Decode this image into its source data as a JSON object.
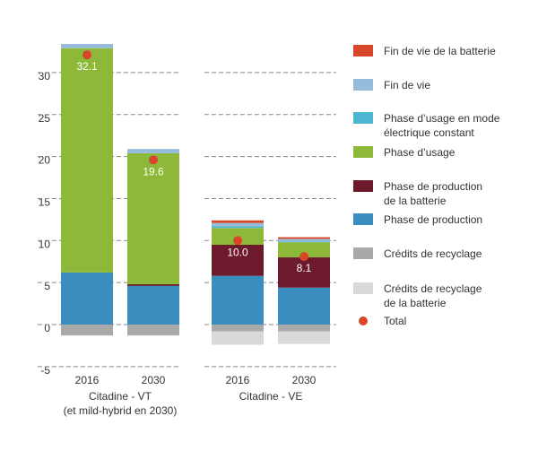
{
  "chart_data": {
    "type": "stacked-bar",
    "groups": [
      {
        "label": "Citadine - VT\n(et mild-hybrid en 2030)",
        "categories": [
          "2016",
          "2030"
        ]
      },
      {
        "label": "Citadine - VE",
        "categories": [
          "2016",
          "2030"
        ]
      }
    ],
    "series": [
      {
        "name": "Fin de vie de la batterie",
        "color": "#d9472b",
        "values": [
          0,
          0,
          0.3,
          0.2
        ]
      },
      {
        "name": "Fin de vie",
        "color": "#96bcdc",
        "values": [
          0.5,
          0.5,
          0.4,
          0.3
        ]
      },
      {
        "name": "Phase d’usage en mode\nélectrique constant",
        "color": "#4db6d0",
        "values": [
          0,
          0,
          0.2,
          0.1
        ]
      },
      {
        "name": "Phase d’usage",
        "color": "#8db83a",
        "values": [
          26.7,
          15.6,
          2.0,
          1.8
        ]
      },
      {
        "name": "Phase de production\nde la batterie",
        "color": "#6d1a2c",
        "values": [
          0,
          0.2,
          3.7,
          3.6
        ]
      },
      {
        "name": "Phase de production",
        "color": "#3a8dbf",
        "values": [
          6.2,
          4.6,
          5.8,
          4.4
        ]
      },
      {
        "name": "Crédits de recyclage",
        "color": "#a9a9a9",
        "values": [
          -1.3,
          -1.3,
          -0.8,
          -0.8
        ]
      },
      {
        "name": "Crédits de recyclage\nde la batterie",
        "color": "#d9d9d9",
        "values": [
          0,
          0,
          -1.6,
          -1.5
        ]
      }
    ],
    "total": {
      "name": "Total",
      "color": "#d9472b",
      "values": [
        32.1,
        19.6,
        10,
        8.1
      ],
      "value_labels": [
        "32.1",
        "19.6",
        "10.0",
        "8.1"
      ]
    },
    "ylim": [
      -5,
      34
    ],
    "yticks": [
      -5,
      0,
      5,
      10,
      15,
      20,
      25,
      30
    ],
    "grid": true
  }
}
